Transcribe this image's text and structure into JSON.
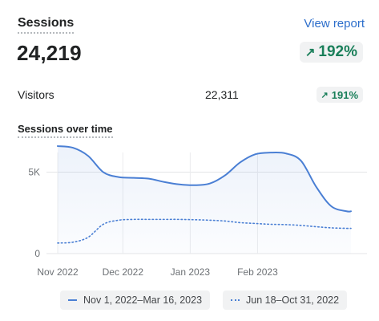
{
  "header": {
    "title": "Sessions",
    "view_report": "View report",
    "total": "24,219",
    "change": "192%"
  },
  "visitors": {
    "label": "Visitors",
    "value": "22,311",
    "change": "191%"
  },
  "chart_title": "Sessions over time",
  "colors": {
    "accent": "#4a7fd4",
    "positive": "#1a7f5a",
    "link": "#2c6ecb"
  },
  "chart_data": {
    "type": "line",
    "title": "Sessions over time",
    "xlabel": "",
    "ylabel": "",
    "ylim": [
      0,
      6800
    ],
    "yticks": [
      0,
      5000
    ],
    "ytick_labels": [
      "0",
      "5K"
    ],
    "x_tick_labels": [
      "Nov 2022",
      "Dec 2022",
      "Jan 2023",
      "Feb 2023"
    ],
    "x_tick_positions": [
      0,
      30,
      61,
      92
    ],
    "grid": true,
    "legend": "bottom",
    "series": [
      {
        "name": "Nov 1, 2022–Mar 16, 2023",
        "style": "solid",
        "area": true,
        "x": [
          0,
          7,
          14,
          21,
          28,
          35,
          42,
          49,
          56,
          63,
          70,
          77,
          84,
          91,
          98,
          105,
          112,
          119,
          126,
          133,
          135
        ],
        "values": [
          6600,
          6500,
          6000,
          5000,
          4700,
          4650,
          4600,
          4400,
          4250,
          4200,
          4300,
          4800,
          5600,
          6100,
          6200,
          6150,
          5700,
          4100,
          2900,
          2600,
          2600
        ]
      },
      {
        "name": "Jun 18–Oct 31, 2022",
        "style": "dotted",
        "area": false,
        "x": [
          0,
          7,
          14,
          21,
          28,
          35,
          42,
          49,
          56,
          63,
          70,
          77,
          84,
          91,
          98,
          105,
          112,
          119,
          126,
          133,
          135
        ],
        "values": [
          650,
          700,
          1000,
          1800,
          2050,
          2100,
          2100,
          2100,
          2100,
          2080,
          2050,
          2000,
          1900,
          1850,
          1800,
          1780,
          1730,
          1650,
          1580,
          1550,
          1550
        ]
      }
    ]
  }
}
